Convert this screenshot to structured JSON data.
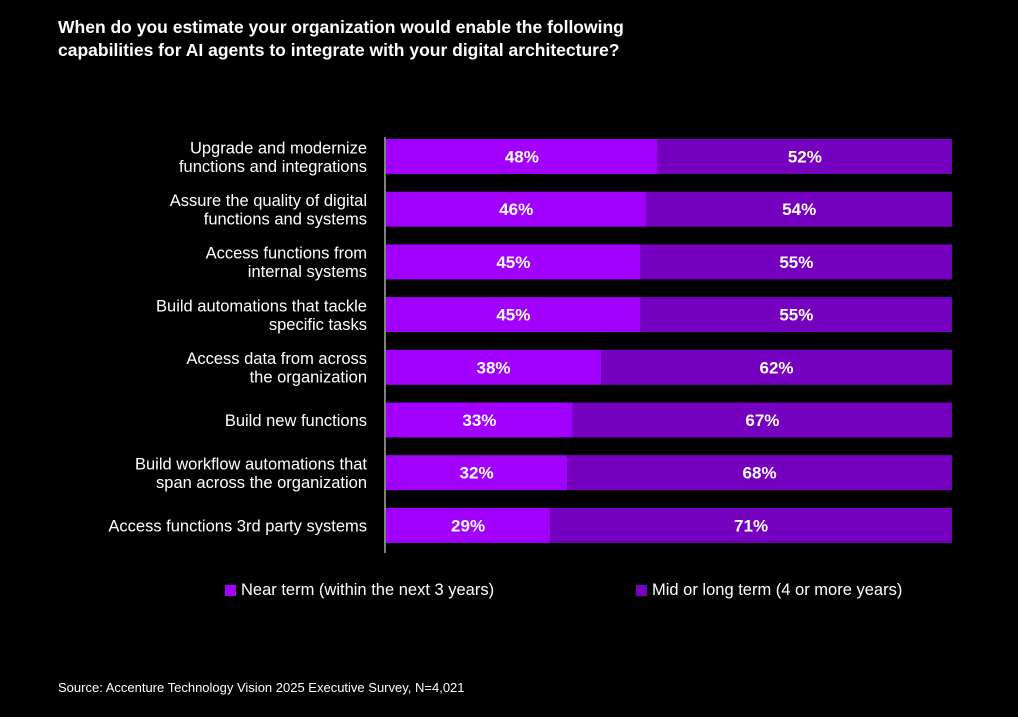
{
  "title_lines": [
    "When do you estimate your organization would enable the following",
    "capabilities for AI agents to integrate with your digital architecture?"
  ],
  "colors": {
    "near_term": "#a100ff",
    "mid_long_term": "#7500c0",
    "background": "#000000"
  },
  "legend": [
    {
      "label": "Near term (within the next 3 years)",
      "color": "#a100ff"
    },
    {
      "label": "Mid or long term (4 or more years)",
      "color": "#7500c0"
    }
  ],
  "source": "Source: Accenture Technology Vision 2025 Executive Survey, N=4,021",
  "chart_data": {
    "type": "bar",
    "orientation": "horizontal",
    "stacked": true,
    "title": "When do you estimate your organization would enable the following capabilities for AI agents to integrate with your digital architecture?",
    "categories": [
      [
        "Upgrade and modernize",
        "functions and integrations"
      ],
      [
        "Assure the quality of digital",
        "functions and systems"
      ],
      [
        "Access functions from",
        "internal systems"
      ],
      [
        "Build automations that tackle",
        "specific tasks"
      ],
      [
        "Access data from across",
        "the organization"
      ],
      [
        "Build new functions"
      ],
      [
        "Build workflow automations that",
        "span across the organization"
      ],
      [
        "Access functions 3rd party systems"
      ]
    ],
    "series": [
      {
        "name": "Near term (within the next 3 years)",
        "values": [
          48,
          46,
          45,
          45,
          38,
          33,
          32,
          29
        ]
      },
      {
        "name": "Mid or long term (4 or more years)",
        "values": [
          52,
          54,
          55,
          55,
          62,
          67,
          68,
          71
        ]
      }
    ],
    "value_suffix": "%",
    "xlim": [
      0,
      100
    ],
    "xlabel": "",
    "ylabel": "",
    "grid": false,
    "legend_position": "bottom"
  }
}
